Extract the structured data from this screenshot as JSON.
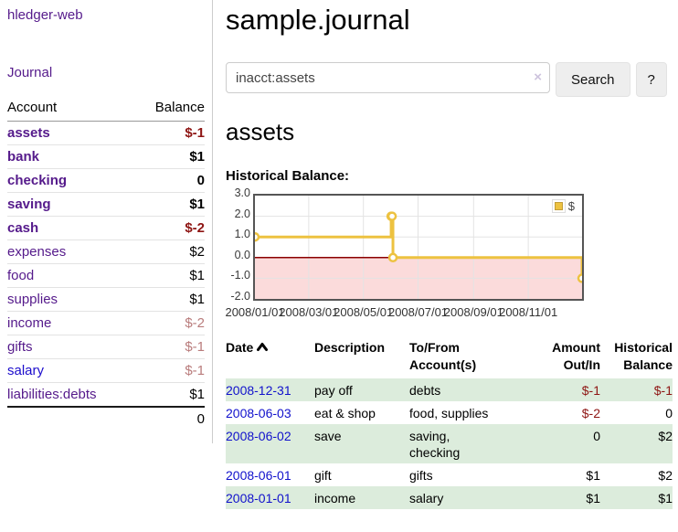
{
  "app": {
    "brand": "hledger-web",
    "nav_journal": "Journal"
  },
  "sidebar": {
    "accounts_header": {
      "account": "Account",
      "balance": "Balance"
    },
    "accounts": [
      {
        "name": "assets",
        "depth": 1,
        "balance": "$-1",
        "bold": true
      },
      {
        "name": "bank",
        "depth": 2,
        "balance": "$1",
        "bold": true
      },
      {
        "name": "checking",
        "depth": 3,
        "balance": "0",
        "bold": true
      },
      {
        "name": "saving",
        "depth": 3,
        "balance": "$1",
        "bold": true
      },
      {
        "name": "cash",
        "depth": 2,
        "balance": "$-2",
        "bold": true
      },
      {
        "name": "expenses",
        "depth": 1,
        "balance": "$2"
      },
      {
        "name": "food",
        "depth": 2,
        "balance": "$1"
      },
      {
        "name": "supplies",
        "depth": 2,
        "balance": "$1"
      },
      {
        "name": "income",
        "depth": 1,
        "balance": "$-2"
      },
      {
        "name": "gifts",
        "depth": 2,
        "balance": "$-1"
      },
      {
        "name": "salary",
        "depth": 2,
        "balance": "$-1",
        "blue": true
      },
      {
        "name": "liabilities:debts",
        "depth": 1,
        "balance": "$1"
      }
    ],
    "total": "0"
  },
  "header": {
    "title": "sample.journal"
  },
  "search": {
    "value": "inacct:assets",
    "clear_icon": "×",
    "button": "Search",
    "help_button": "?"
  },
  "account_page": {
    "title": "assets",
    "chart_label": "Historical Balance:"
  },
  "chart_data": {
    "type": "line",
    "step": true,
    "title": "Historical Balance:",
    "series": [
      {
        "name": "$",
        "color": "#edc240",
        "points": [
          [
            "2008-01-01",
            1
          ],
          [
            "2008-06-01",
            2
          ],
          [
            "2008-06-02",
            2
          ],
          [
            "2008-06-03",
            0
          ],
          [
            "2008-12-31",
            -1
          ]
        ]
      }
    ],
    "x_ticks": [
      "2008/01/01",
      "2008/03/01",
      "2008/05/01",
      "2008/07/01",
      "2008/09/01",
      "2008/11/01"
    ],
    "y_ticks": [
      3.0,
      2.0,
      1.0,
      0.0,
      -1.0,
      -2.0
    ],
    "xlim": [
      "2008-01-01",
      "2008-12-31"
    ],
    "ylim": [
      -2,
      3
    ],
    "grid": true,
    "legend_position": "top-right",
    "colors": {
      "grid": "#e3e3e3",
      "border": "#555555",
      "zero_line": "#8b0000",
      "negative_region": "#fbdbdb",
      "marker_fill": "#ffffff"
    }
  },
  "register": {
    "columns": {
      "date": "Date",
      "description": "Description",
      "accounts": "To/From\nAccount(s)",
      "amount": "Amount\nOut/In",
      "balance": "Historical\nBalance"
    },
    "rows": [
      {
        "date": "2008-12-31",
        "description": "pay off",
        "accounts": "debts",
        "amount": "$-1",
        "balance": "$-1"
      },
      {
        "date": "2008-06-03",
        "description": "eat & shop",
        "accounts": "food, supplies",
        "amount": "$-2",
        "balance": "0"
      },
      {
        "date": "2008-06-02",
        "description": "save",
        "accounts": "saving,\nchecking",
        "amount": "0",
        "balance": "$2"
      },
      {
        "date": "2008-06-01",
        "description": "gift",
        "accounts": "gifts",
        "amount": "$1",
        "balance": "$2"
      },
      {
        "date": "2008-01-01",
        "description": "income",
        "accounts": "salary",
        "amount": "$1",
        "balance": "$1"
      }
    ]
  }
}
